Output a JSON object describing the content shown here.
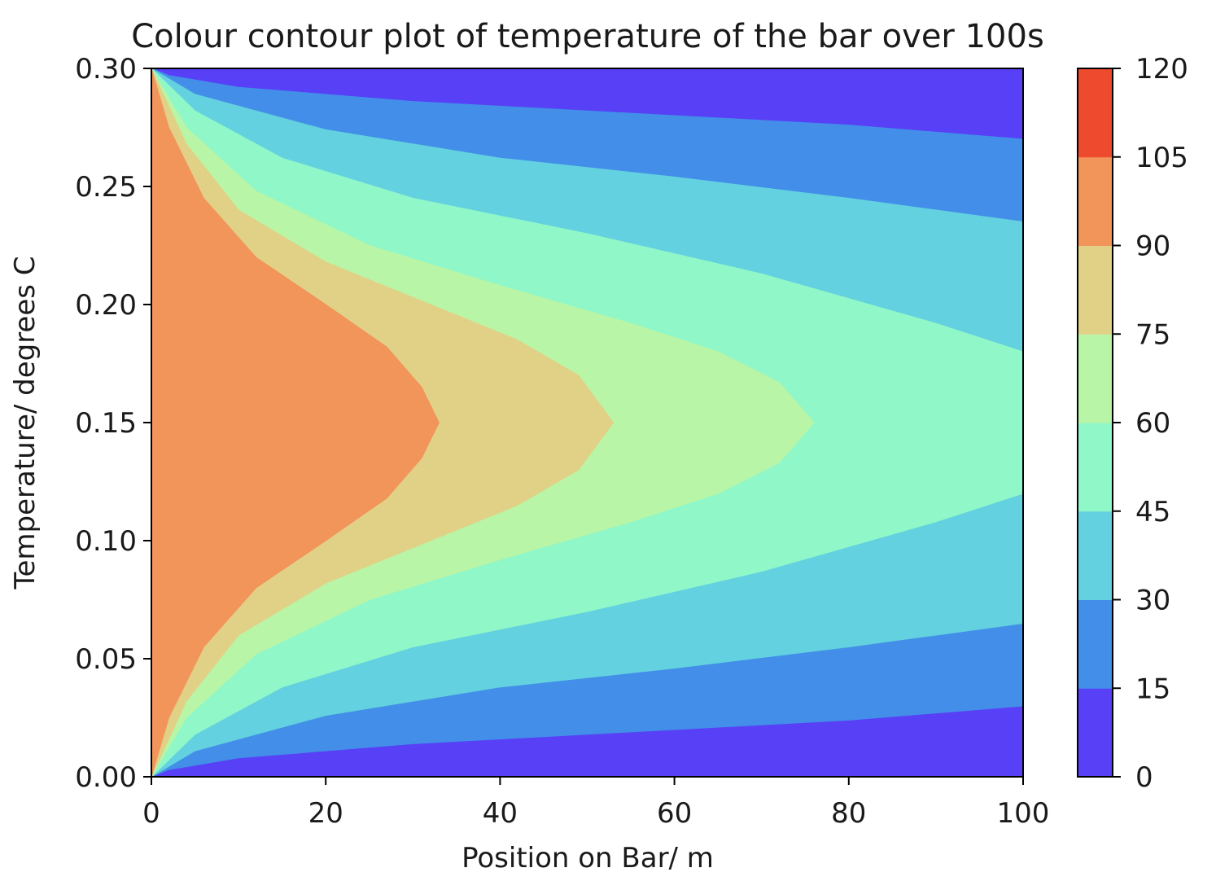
{
  "chart_data": {
    "type": "contourf",
    "title": "Colour contour plot of temperature of the bar over 100s",
    "xlabel": "Position on Bar/ m",
    "ylabel": "Temperature/ degrees C",
    "xlim": [
      0,
      100
    ],
    "ylim": [
      0,
      0.3
    ],
    "xticks": [
      "0",
      "20",
      "40",
      "60",
      "80",
      "100"
    ],
    "yticks": [
      "0.00",
      "0.05",
      "0.10",
      "0.15",
      "0.20",
      "0.25",
      "0.30"
    ],
    "colorbar": {
      "levels": [
        0,
        15,
        30,
        45,
        60,
        75,
        90,
        105,
        120
      ],
      "tick_labels": [
        "0",
        "15",
        "30",
        "45",
        "60",
        "75",
        "90",
        "105",
        "120"
      ],
      "colors": [
        "#5840f6",
        "#428ee9",
        "#63d1df",
        "#90f7c9",
        "#b8f5a6",
        "#e1d187",
        "#f1955b",
        "#ed4a2e"
      ]
    },
    "contour_boundaries": [
      {
        "level": 15,
        "points": [
          [
            0,
            0.3
          ],
          [
            2,
            0.297
          ],
          [
            10,
            0.292
          ],
          [
            30,
            0.286
          ],
          [
            60,
            0.28
          ],
          [
            80,
            0.276
          ],
          [
            100,
            0.27
          ],
          [
            100,
            0.03
          ],
          [
            80,
            0.024
          ],
          [
            60,
            0.02
          ],
          [
            30,
            0.014
          ],
          [
            10,
            0.008
          ],
          [
            2,
            0.003
          ],
          [
            0,
            0.0
          ]
        ]
      },
      {
        "level": 30,
        "points": [
          [
            0,
            0.3
          ],
          [
            5,
            0.289
          ],
          [
            20,
            0.274
          ],
          [
            40,
            0.262
          ],
          [
            60,
            0.254
          ],
          [
            80,
            0.245
          ],
          [
            100,
            0.235
          ],
          [
            100,
            0.065
          ],
          [
            80,
            0.055
          ],
          [
            60,
            0.046
          ],
          [
            40,
            0.038
          ],
          [
            20,
            0.026
          ],
          [
            5,
            0.011
          ],
          [
            0,
            0.0
          ]
        ]
      },
      {
        "level": 45,
        "points": [
          [
            0,
            0.3
          ],
          [
            5,
            0.282
          ],
          [
            15,
            0.262
          ],
          [
            30,
            0.245
          ],
          [
            50,
            0.23
          ],
          [
            70,
            0.213
          ],
          [
            90,
            0.192
          ],
          [
            100,
            0.18
          ],
          [
            100,
            0.12
          ],
          [
            90,
            0.108
          ],
          [
            70,
            0.087
          ],
          [
            50,
            0.07
          ],
          [
            30,
            0.055
          ],
          [
            15,
            0.038
          ],
          [
            5,
            0.018
          ],
          [
            0,
            0.0
          ]
        ]
      },
      {
        "level": 60,
        "points": [
          [
            0,
            0.3
          ],
          [
            4,
            0.275
          ],
          [
            12,
            0.248
          ],
          [
            25,
            0.225
          ],
          [
            40,
            0.208
          ],
          [
            55,
            0.192
          ],
          [
            65,
            0.18
          ],
          [
            72,
            0.167
          ],
          [
            76,
            0.15
          ],
          [
            72,
            0.133
          ],
          [
            65,
            0.12
          ],
          [
            55,
            0.108
          ],
          [
            40,
            0.092
          ],
          [
            25,
            0.075
          ],
          [
            12,
            0.052
          ],
          [
            4,
            0.025
          ],
          [
            0,
            0.0
          ]
        ]
      },
      {
        "level": 75,
        "points": [
          [
            0,
            0.3
          ],
          [
            4,
            0.268
          ],
          [
            10,
            0.24
          ],
          [
            20,
            0.218
          ],
          [
            32,
            0.2
          ],
          [
            42,
            0.185
          ],
          [
            49,
            0.17
          ],
          [
            53,
            0.15
          ],
          [
            49,
            0.13
          ],
          [
            42,
            0.115
          ],
          [
            32,
            0.1
          ],
          [
            20,
            0.082
          ],
          [
            10,
            0.06
          ],
          [
            4,
            0.032
          ],
          [
            0,
            0.0
          ]
        ]
      },
      {
        "level": 90,
        "points": [
          [
            0,
            0.3
          ],
          [
            2,
            0.275
          ],
          [
            6,
            0.245
          ],
          [
            12,
            0.22
          ],
          [
            20,
            0.2
          ],
          [
            27,
            0.182
          ],
          [
            31,
            0.165
          ],
          [
            33,
            0.15
          ],
          [
            31,
            0.135
          ],
          [
            27,
            0.118
          ],
          [
            20,
            0.1
          ],
          [
            12,
            0.08
          ],
          [
            6,
            0.055
          ],
          [
            2,
            0.025
          ],
          [
            0,
            0.0
          ]
        ]
      }
    ]
  }
}
